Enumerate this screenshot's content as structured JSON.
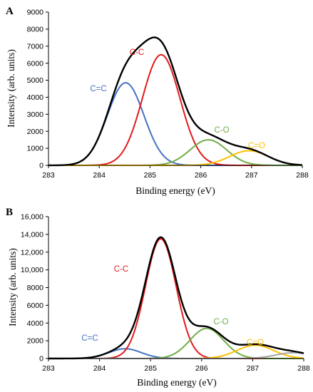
{
  "chart_data": [
    {
      "type": "line",
      "panel_label": "A",
      "xlabel": "Binding energy (eV)",
      "ylabel": "Intensity (arb. units)",
      "xlim": [
        283,
        288
      ],
      "ylim": [
        0,
        9000
      ],
      "x_ticks": [
        "283",
        "284",
        "285",
        "286",
        "287",
        "288"
      ],
      "y_ticks": [
        "0",
        "1000",
        "2000",
        "3000",
        "4000",
        "5000",
        "6000",
        "7000",
        "8000",
        "9000"
      ],
      "grid": false,
      "series": [
        {
          "name": "C=C",
          "color": "#4472C4",
          "center": 284.52,
          "height": 4850,
          "width": 0.36
        },
        {
          "name": "C-C",
          "color": "#E41A1C",
          "center": 285.22,
          "height": 6500,
          "width": 0.37
        },
        {
          "name": "C-O",
          "color": "#70AD47",
          "center": 286.15,
          "height": 1500,
          "width": 0.36
        },
        {
          "name": "C=O",
          "color": "#FFC000",
          "center": 286.95,
          "height": 860,
          "width": 0.38
        },
        {
          "name": "",
          "color": "#000000",
          "type": "envelope"
        }
      ]
    },
    {
      "type": "line",
      "panel_label": "B",
      "xlabel": "Binding energy (eV)",
      "ylabel": "Intensity (arb. units)",
      "xlim": [
        283,
        288
      ],
      "ylim": [
        0,
        16000
      ],
      "x_ticks": [
        "283",
        "284",
        "285",
        "286",
        "287",
        "288"
      ],
      "y_ticks": [
        "0",
        "2000",
        "4000",
        "6000",
        "8000",
        "10,000",
        "12,000",
        "14,000",
        "16,000"
      ],
      "grid": false,
      "series": [
        {
          "name": "C=C",
          "color": "#4472C4",
          "center": 284.5,
          "height": 1100,
          "width": 0.32
        },
        {
          "name": "C-C",
          "color": "#E41A1C",
          "center": 285.2,
          "height": 13500,
          "width": 0.3
        },
        {
          "name": "C-O",
          "color": "#70AD47",
          "center": 286.1,
          "height": 3400,
          "width": 0.33
        },
        {
          "name": "C=O",
          "color": "#FFC000",
          "center": 287.05,
          "height": 1500,
          "width": 0.36
        },
        {
          "name": "",
          "color": "#A6A6A6",
          "center": 287.8,
          "height": 650,
          "width": 0.35
        },
        {
          "name": "",
          "color": "#000000",
          "type": "envelope"
        }
      ]
    }
  ]
}
